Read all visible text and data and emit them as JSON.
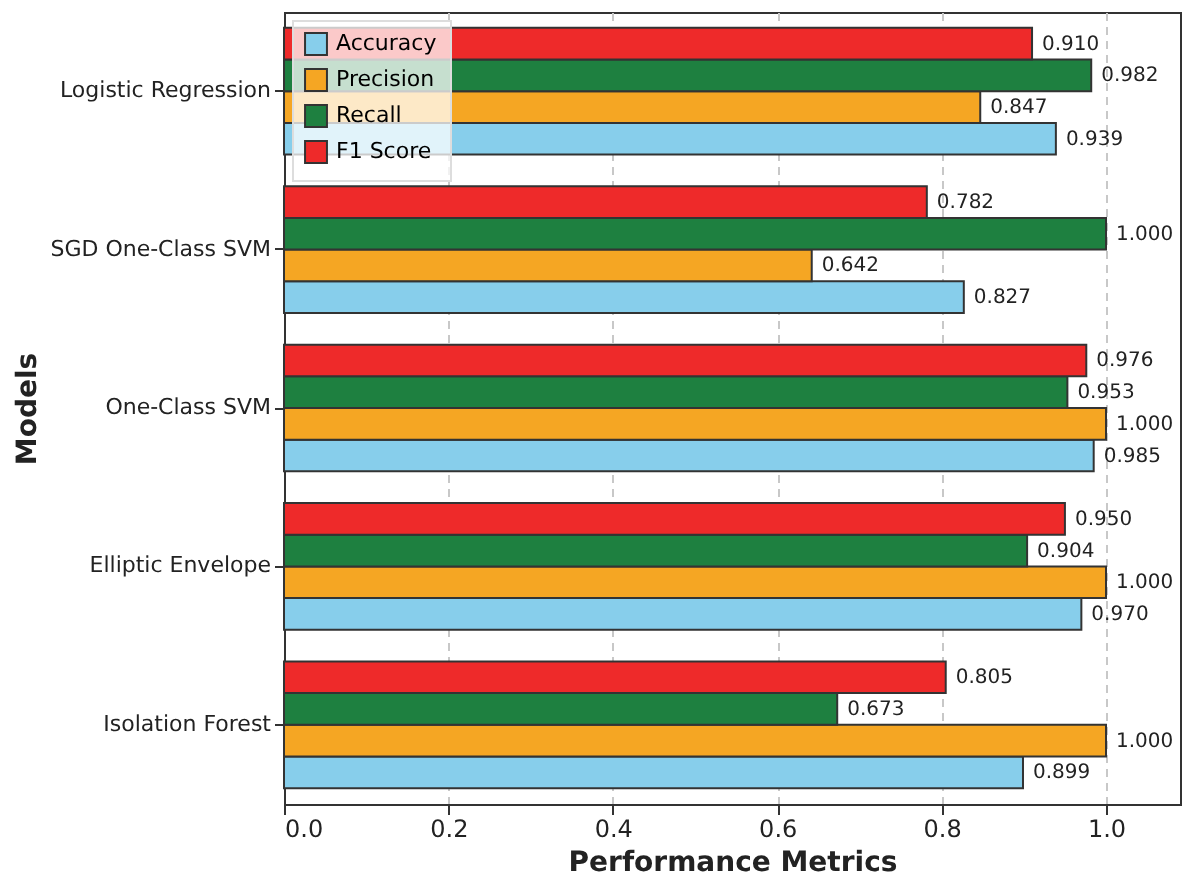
{
  "chart_data": {
    "type": "bar",
    "orientation": "horizontal",
    "xlabel": "Performance Metrics",
    "ylabel": "Models",
    "categories": [
      "Logistic Regression",
      "SGD One-Class SVM",
      "One-Class SVM",
      "Elliptic Envelope",
      "Isolation Forest"
    ],
    "series": [
      {
        "name": "Accuracy",
        "color": "#87ceeb",
        "values": [
          0.939,
          0.827,
          0.985,
          0.97,
          0.899
        ],
        "value_labels": [
          "0.939",
          "0.827",
          "0.985",
          "0.970",
          "0.899"
        ]
      },
      {
        "name": "Precision",
        "color": "#f5a623",
        "values": [
          0.847,
          0.642,
          1.0,
          1.0,
          1.0
        ],
        "value_labels": [
          "0.847",
          "0.642",
          "1.000",
          "1.000",
          "1.000"
        ]
      },
      {
        "name": "Recall",
        "color": "#1e8040",
        "values": [
          0.982,
          1.0,
          0.953,
          0.904,
          0.673
        ],
        "value_labels": [
          "0.982",
          "1.000",
          "0.953",
          "0.904",
          "0.673"
        ]
      },
      {
        "name": "F1 Score",
        "color": "#ee2a2a",
        "values": [
          0.91,
          0.782,
          0.976,
          0.95,
          0.805
        ],
        "value_labels": [
          "0.910",
          "0.782",
          "0.976",
          "0.950",
          "0.805"
        ]
      }
    ],
    "xlim": [
      0,
      1.09
    ],
    "xticks": [
      {
        "value": 0,
        "label": "0.0"
      },
      {
        "value": 0.2,
        "label": "0.2"
      },
      {
        "value": 0.4,
        "label": "0.4"
      },
      {
        "value": 0.6,
        "label": "0.6"
      },
      {
        "value": 0.8,
        "label": "0.8"
      },
      {
        "value": 1,
        "label": "1.0"
      }
    ],
    "grid": "x",
    "legend": "top left"
  }
}
